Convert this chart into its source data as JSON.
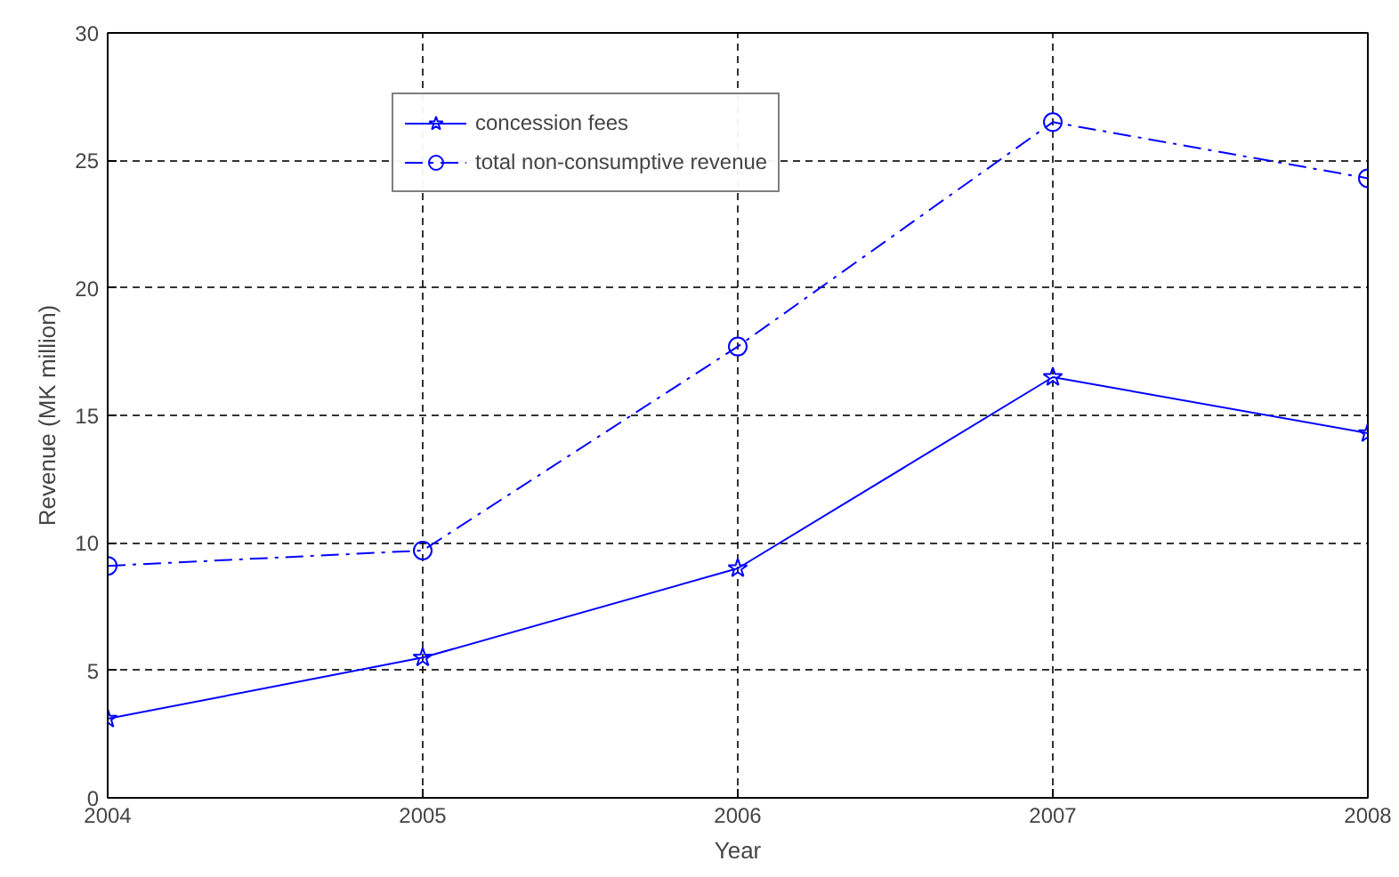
{
  "chart_data": {
    "type": "line",
    "xlabel": "Year",
    "ylabel": "Revenue (MK million)",
    "x": [
      2004,
      2005,
      2006,
      2007,
      2008
    ],
    "series": [
      {
        "name": "concession fees",
        "color": "#0000ff",
        "values": [
          3.1,
          5.5,
          9.0,
          16.5,
          14.3
        ],
        "marker": "star",
        "line_style": "solid"
      },
      {
        "name": "total non-consumptive revenue",
        "color": "#0000ff",
        "values": [
          9.1,
          9.7,
          17.7,
          26.5,
          24.3
        ],
        "marker": "circle",
        "line_style": "dashed"
      }
    ],
    "xlim": [
      2004,
      2008
    ],
    "xticks": [
      2004,
      2005,
      2006,
      2007,
      2008
    ],
    "ylim": [
      0,
      30
    ],
    "yticks": [
      0,
      5,
      10,
      15,
      20,
      25,
      30
    ],
    "grid": true,
    "legend": "top left"
  }
}
